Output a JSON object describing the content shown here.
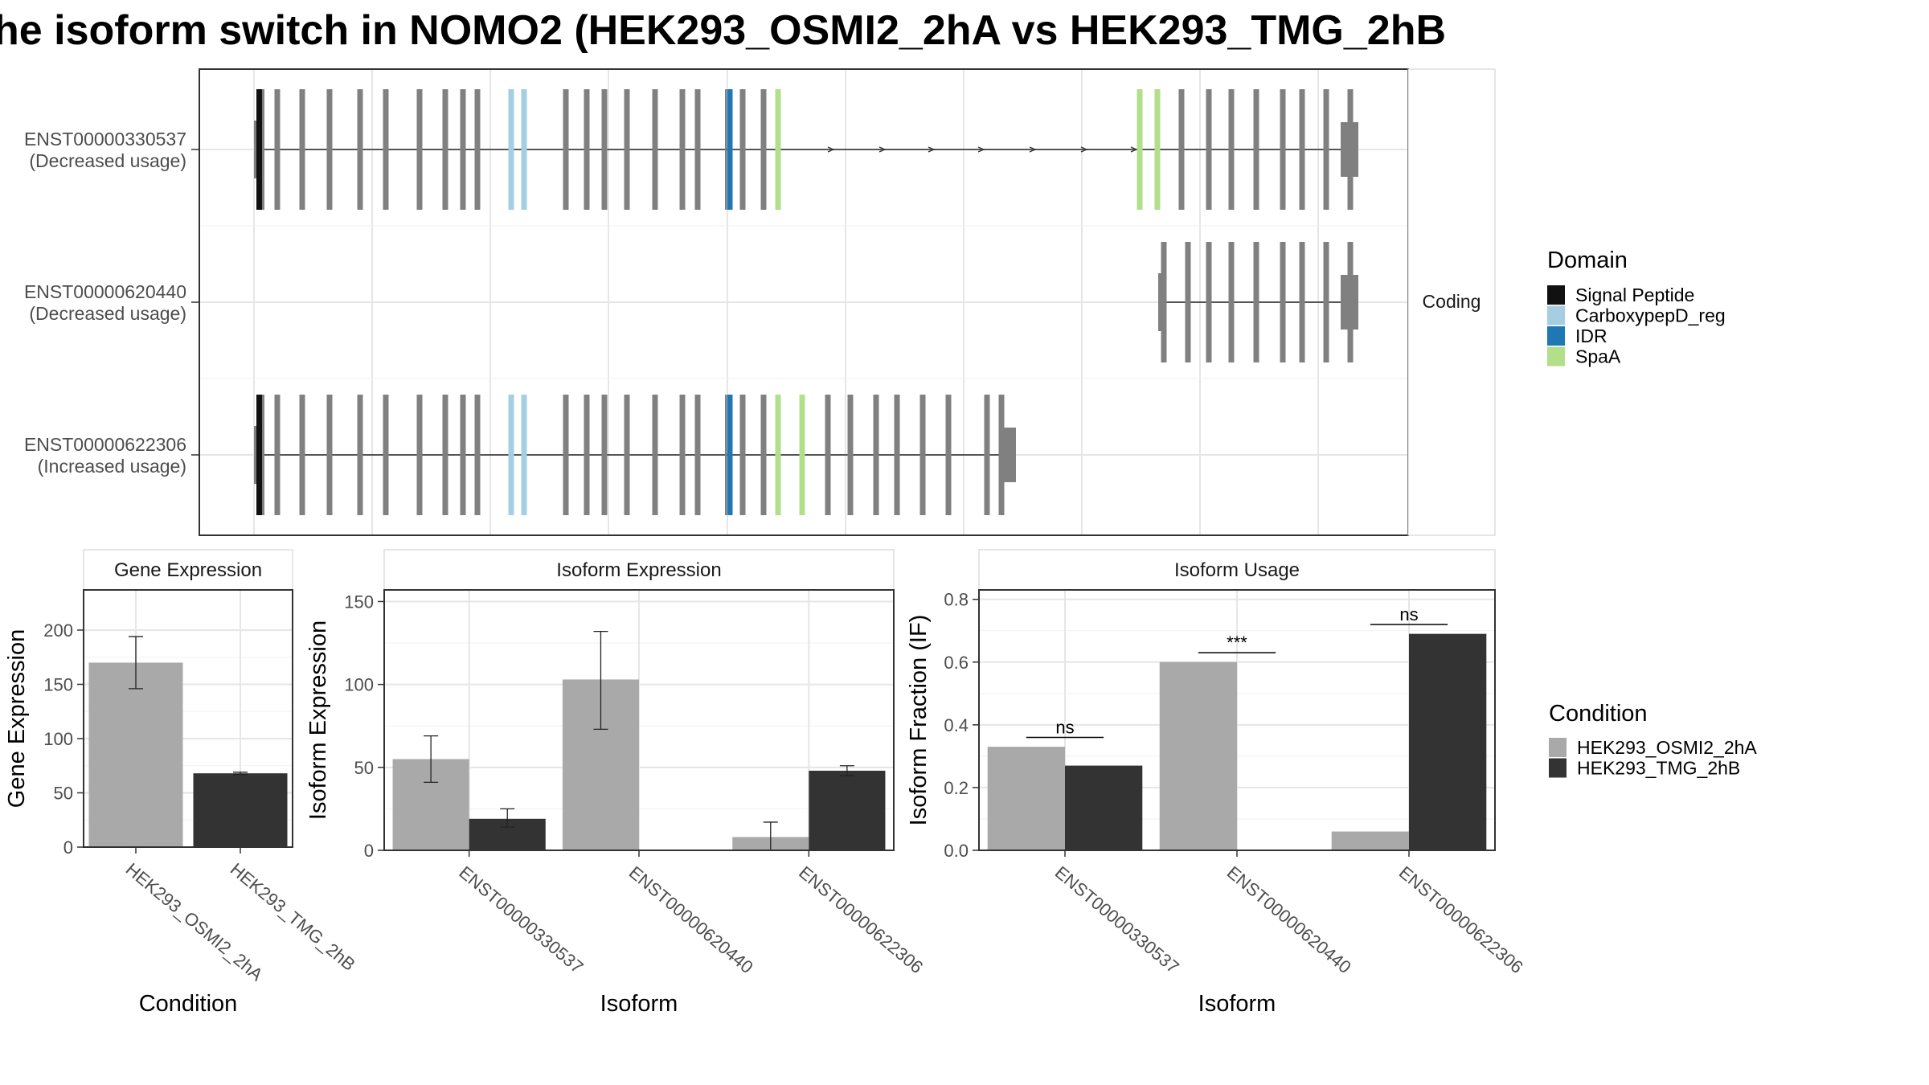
{
  "title": "he isoform switch in NOMO2 (HEK293_OSMI2_2hA vs HEK293_TMG_2hB",
  "colors": {
    "cond1": "#a9a9a9",
    "cond2": "#333333",
    "exon": "#808080",
    "intron": "#555555",
    "panel_border": "#333333",
    "strip_fill": "#ffffff",
    "grid_major": "#e6e6e6",
    "domain_signal_peptide": "#111111",
    "domain_carboxypepd_reg": "#a6cee3",
    "domain_idr": "#1f78b4",
    "domain_spaa": "#b2df8a"
  },
  "structure": {
    "strip_label": "Coding",
    "isoforms": [
      {
        "id": "ENST00000330537",
        "usage": "(Decreased usage)"
      },
      {
        "id": "ENST00000620440",
        "usage": "(Decreased usage)"
      },
      {
        "id": "ENST00000622306",
        "usage": "(Increased usage)"
      }
    ]
  },
  "legend_domain": {
    "title": "Domain",
    "items": [
      {
        "label": "Signal Peptide",
        "color": "#111111"
      },
      {
        "label": "CarboxypepD_reg",
        "color": "#a6cee3"
      },
      {
        "label": "IDR",
        "color": "#1f78b4"
      },
      {
        "label": "SpaA",
        "color": "#b2df8a"
      }
    ]
  },
  "legend_condition": {
    "title": "Condition",
    "items": [
      {
        "label": "HEK293_OSMI2_2hA",
        "color": "#a9a9a9"
      },
      {
        "label": "HEK293_TMG_2hB",
        "color": "#333333"
      }
    ]
  },
  "chart_data": [
    {
      "type": "bar",
      "title": "Gene Expression",
      "xlabel": "Condition",
      "ylabel": "Gene Expression",
      "categories": [
        "HEK293_OSMI2_2hA",
        "HEK293_TMG_2hB"
      ],
      "values": [
        170,
        68
      ],
      "error_low": [
        146,
        67
      ],
      "error_high": [
        194,
        69
      ],
      "ylim": [
        0,
        237
      ],
      "yticks": [
        0,
        50,
        100,
        150,
        200
      ]
    },
    {
      "type": "bar",
      "title": "Isoform Expression",
      "xlabel": "Isoform",
      "ylabel": "Isoform Expression",
      "categories": [
        "ENST00000330537",
        "ENST00000620440",
        "ENST00000622306"
      ],
      "series": [
        {
          "name": "HEK293_OSMI2_2hA",
          "values": [
            55,
            103,
            8
          ],
          "error_low": [
            41,
            73,
            0
          ],
          "error_high": [
            69,
            132,
            17
          ]
        },
        {
          "name": "HEK293_TMG_2hB",
          "values": [
            19,
            0,
            48
          ],
          "error_low": [
            14,
            0,
            45
          ],
          "error_high": [
            25,
            0,
            51
          ]
        }
      ],
      "ylim": [
        0,
        157
      ],
      "yticks": [
        0,
        50,
        100,
        150
      ]
    },
    {
      "type": "bar",
      "title": "Isoform Usage",
      "xlabel": "Isoform",
      "ylabel": "Isoform Fraction (IF)",
      "categories": [
        "ENST00000330537",
        "ENST00000620440",
        "ENST00000622306"
      ],
      "series": [
        {
          "name": "HEK293_OSMI2_2hA",
          "values": [
            0.33,
            0.6,
            0.06
          ]
        },
        {
          "name": "HEK293_TMG_2hB",
          "values": [
            0.27,
            0.0,
            0.69
          ]
        }
      ],
      "significance": [
        "ns",
        "***",
        "ns"
      ],
      "ylim": [
        0,
        0.83
      ],
      "yticks": [
        0.0,
        0.2,
        0.4,
        0.6,
        0.8
      ]
    }
  ]
}
